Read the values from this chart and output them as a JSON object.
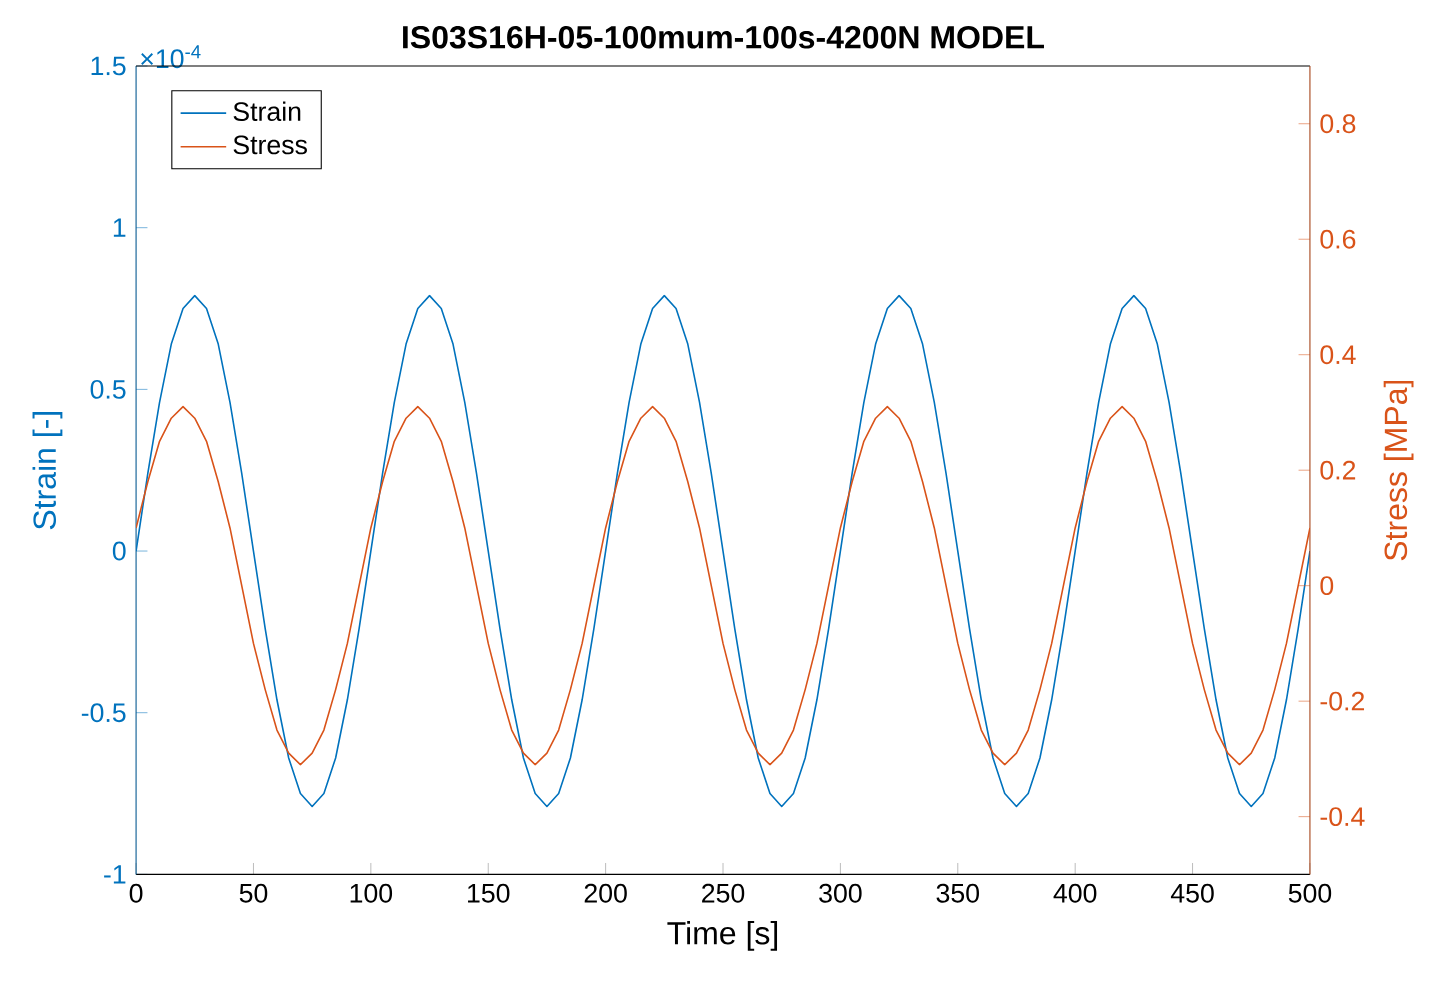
{
  "chart_data": {
    "type": "line",
    "title": "IS03S16H-05-100mum-100s-4200N MODEL",
    "xlabel": "Time [s]",
    "ylabel": "Strain [-]",
    "y2label": "Stress [MPa]",
    "legend": "top left",
    "annotations": [
      "×10$^{-4}$"
    ],
    "xlim": [
      0,
      500
    ],
    "xticks": [
      0,
      50,
      100,
      150,
      200,
      250,
      300,
      350,
      400,
      450,
      500
    ],
    "ylim": [
      -1,
      1.5
    ],
    "yticks": [
      -1,
      -0.5,
      0,
      0.5,
      1,
      1.5
    ],
    "y2lim": [
      -0.5,
      0.9
    ],
    "y2ticks": [
      -0.4,
      -0.2,
      0,
      0.2,
      0.4,
      0.6,
      0.8
    ],
    "x": [
      0,
      5,
      10,
      15,
      20,
      25,
      30,
      35,
      40,
      45,
      50,
      55,
      60,
      65,
      70,
      75,
      80,
      85,
      90,
      95,
      100,
      105,
      110,
      115,
      120,
      125,
      130,
      135,
      140,
      145,
      150,
      155,
      160,
      165,
      170,
      175,
      180,
      185,
      190,
      195,
      200,
      205,
      210,
      215,
      220,
      225,
      230,
      235,
      240,
      245,
      250,
      255,
      260,
      265,
      270,
      275,
      280,
      285,
      290,
      295,
      300,
      305,
      310,
      315,
      320,
      325,
      330,
      335,
      340,
      345,
      350,
      355,
      360,
      365,
      370,
      375,
      380,
      385,
      390,
      395,
      400,
      405,
      410,
      415,
      420,
      425,
      430,
      435,
      440,
      445,
      450,
      455,
      460,
      465,
      470,
      475,
      480,
      485,
      490,
      495,
      500
    ],
    "series": [
      {
        "name": "Strain",
        "color": "#0072bd",
        "values": [
          0,
          0.24,
          0.46,
          0.64,
          0.75,
          0.79,
          0.75,
          0.64,
          0.46,
          0.24,
          0,
          -0.24,
          -0.46,
          -0.64,
          -0.75,
          -0.79,
          -0.75,
          -0.64,
          -0.46,
          -0.24,
          0,
          0.24,
          0.46,
          0.64,
          0.75,
          0.79,
          0.75,
          0.64,
          0.46,
          0.24,
          0,
          -0.24,
          -0.46,
          -0.64,
          -0.75,
          -0.79,
          -0.75,
          -0.64,
          -0.46,
          -0.24,
          0,
          0.24,
          0.46,
          0.64,
          0.75,
          0.79,
          0.75,
          0.64,
          0.46,
          0.24,
          0,
          -0.24,
          -0.46,
          -0.64,
          -0.75,
          -0.79,
          -0.75,
          -0.64,
          -0.46,
          -0.24,
          0,
          0.24,
          0.46,
          0.64,
          0.75,
          0.79,
          0.75,
          0.64,
          0.46,
          0.24,
          0,
          -0.24,
          -0.46,
          -0.64,
          -0.75,
          -0.79,
          -0.75,
          -0.64,
          -0.46,
          -0.24,
          0,
          0.24,
          0.46,
          0.64,
          0.75,
          0.79,
          0.75,
          0.64,
          0.46,
          0.24,
          0,
          -0.24,
          -0.46,
          -0.64,
          -0.75,
          -0.79,
          -0.75,
          -0.64,
          -0.46,
          -0.24,
          0
        ]
      },
      {
        "name": "Stress",
        "color": "#d95319",
        "axis": "y2",
        "values": [
          0.1,
          0.18,
          0.25,
          0.29,
          0.31,
          0.29,
          0.25,
          0.18,
          0.1,
          0,
          -0.1,
          -0.18,
          -0.25,
          -0.29,
          -0.31,
          -0.29,
          -0.25,
          -0.18,
          -0.1,
          0,
          0.1,
          0.18,
          0.25,
          0.29,
          0.31,
          0.29,
          0.25,
          0.18,
          0.1,
          0,
          -0.1,
          -0.18,
          -0.25,
          -0.29,
          -0.31,
          -0.29,
          -0.25,
          -0.18,
          -0.1,
          0,
          0.1,
          0.18,
          0.25,
          0.29,
          0.31,
          0.29,
          0.25,
          0.18,
          0.1,
          0,
          -0.1,
          -0.18,
          -0.25,
          -0.29,
          -0.31,
          -0.29,
          -0.25,
          -0.18,
          -0.1,
          0,
          0.1,
          0.18,
          0.25,
          0.29,
          0.31,
          0.29,
          0.25,
          0.18,
          0.1,
          0,
          -0.1,
          -0.18,
          -0.25,
          -0.29,
          -0.31,
          -0.29,
          -0.25,
          -0.18,
          -0.1,
          0,
          0.1,
          0.18,
          0.25,
          0.29,
          0.31,
          0.29,
          0.25,
          0.18,
          0.1,
          0,
          -0.1,
          -0.18,
          -0.25,
          -0.29,
          -0.31,
          -0.29,
          -0.25,
          -0.18,
          -0.1,
          0,
          0.1
        ]
      }
    ]
  }
}
